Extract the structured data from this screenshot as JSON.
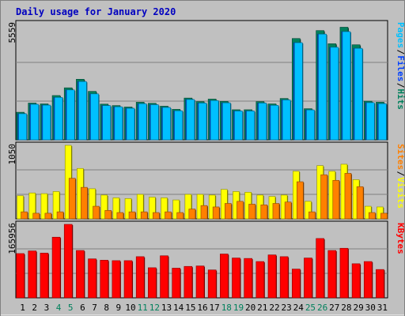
{
  "title": "Daily usage for January 2020",
  "colors": {
    "background": "#c0c0c0",
    "plot_bg": "#c0c0c0",
    "hits": "#00805c",
    "files": "#0040ff",
    "pages": "#00c0ff",
    "visits": "#ffff00",
    "sites": "#ff8000",
    "kbytes": "#ff0000",
    "weekend_label": "#00805c",
    "weekday_label": "#000000"
  },
  "chart_data": [
    {
      "type": "bar",
      "panel": "hits-files-pages",
      "categories": [
        "1",
        "2",
        "3",
        "4",
        "5",
        "6",
        "7",
        "8",
        "9",
        "10",
        "11",
        "12",
        "13",
        "14",
        "15",
        "16",
        "17",
        "18",
        "19",
        "20",
        "21",
        "22",
        "23",
        "24",
        "25",
        "26",
        "27",
        "28",
        "29",
        "30",
        "31"
      ],
      "ymax_label": "5559",
      "ylim": [
        0,
        5559
      ],
      "legend": [
        {
          "text": "Pages",
          "color": "#00c0ff"
        },
        {
          "text": "/",
          "color": "#000000"
        },
        {
          "text": "Files",
          "color": "#0040ff"
        },
        {
          "text": "/",
          "color": "#000000"
        },
        {
          "text": "Hits",
          "color": "#00805c"
        }
      ],
      "series": [
        {
          "name": "Hits",
          "values": [
            1320,
            1760,
            1720,
            2120,
            2490,
            2900,
            2320,
            1710,
            1640,
            1570,
            1800,
            1750,
            1610,
            1460,
            2000,
            1830,
            1950,
            1840,
            1440,
            1440,
            1830,
            1720,
            1980,
            4850,
            1490,
            5230,
            4600,
            5390,
            4550,
            1850,
            1800
          ]
        },
        {
          "name": "Files",
          "values": [
            1250,
            1700,
            1660,
            2030,
            2390,
            2790,
            2200,
            1640,
            1580,
            1510,
            1730,
            1680,
            1550,
            1390,
            1930,
            1760,
            1880,
            1770,
            1380,
            1380,
            1760,
            1650,
            1910,
            4650,
            1430,
            5060,
            4430,
            5180,
            4380,
            1780,
            1730
          ]
        },
        {
          "name": "Pages",
          "values": [
            1250,
            1700,
            1660,
            2030,
            2390,
            2790,
            2200,
            1640,
            1580,
            1510,
            1730,
            1680,
            1550,
            1390,
            1930,
            1760,
            1880,
            1770,
            1380,
            1380,
            1760,
            1650,
            1910,
            4650,
            1430,
            5060,
            4430,
            5180,
            4380,
            1780,
            1730
          ]
        }
      ]
    },
    {
      "type": "bar",
      "panel": "visits-sites",
      "categories": [
        "1",
        "2",
        "3",
        "4",
        "5",
        "6",
        "7",
        "8",
        "9",
        "10",
        "11",
        "12",
        "13",
        "14",
        "15",
        "16",
        "17",
        "18",
        "19",
        "20",
        "21",
        "22",
        "23",
        "24",
        "25",
        "26",
        "27",
        "28",
        "29",
        "30",
        "31"
      ],
      "ymax_label": "1050",
      "ylim": [
        0,
        1050
      ],
      "legend": [
        {
          "text": "Sites",
          "color": "#ff8000"
        },
        {
          "text": "/",
          "color": "#000000"
        },
        {
          "text": "Visits",
          "color": "#ffff00"
        }
      ],
      "series": [
        {
          "name": "Visits",
          "values": [
            330,
            370,
            360,
            390,
            1050,
            720,
            430,
            340,
            300,
            290,
            350,
            310,
            300,
            270,
            350,
            350,
            340,
            420,
            390,
            380,
            340,
            320,
            340,
            680,
            250,
            760,
            680,
            780,
            560,
            180,
            170
          ]
        },
        {
          "name": "Sites",
          "values": [
            100,
            80,
            80,
            100,
            580,
            450,
            180,
            120,
            90,
            100,
            100,
            90,
            100,
            90,
            140,
            190,
            170,
            220,
            250,
            210,
            200,
            220,
            240,
            530,
            100,
            630,
            550,
            650,
            460,
            90,
            80
          ]
        }
      ]
    },
    {
      "type": "bar",
      "panel": "kbytes",
      "categories": [
        "1",
        "2",
        "3",
        "4",
        "5",
        "6",
        "7",
        "8",
        "9",
        "10",
        "11",
        "12",
        "13",
        "14",
        "15",
        "16",
        "17",
        "18",
        "19",
        "20",
        "21",
        "22",
        "23",
        "24",
        "25",
        "26",
        "27",
        "28",
        "29",
        "30",
        "31"
      ],
      "ymax_label": "165956",
      "ylim": [
        0,
        165956
      ],
      "legend": [
        {
          "text": "KBytes",
          "color": "#ff0000"
        }
      ],
      "series": [
        {
          "name": "KBytes",
          "values": [
            100000,
            106000,
            101000,
            137000,
            166000,
            107000,
            88000,
            85000,
            84000,
            84000,
            93000,
            68000,
            95000,
            67000,
            71000,
            72000,
            63000,
            99000,
            90000,
            89000,
            82000,
            97000,
            93000,
            65000,
            90000,
            134000,
            107000,
            112000,
            77000,
            82000,
            64000
          ]
        }
      ]
    }
  ],
  "x_labels": {
    "weekend_days": [
      "4",
      "5",
      "11",
      "12",
      "18",
      "19",
      "25",
      "26"
    ]
  }
}
